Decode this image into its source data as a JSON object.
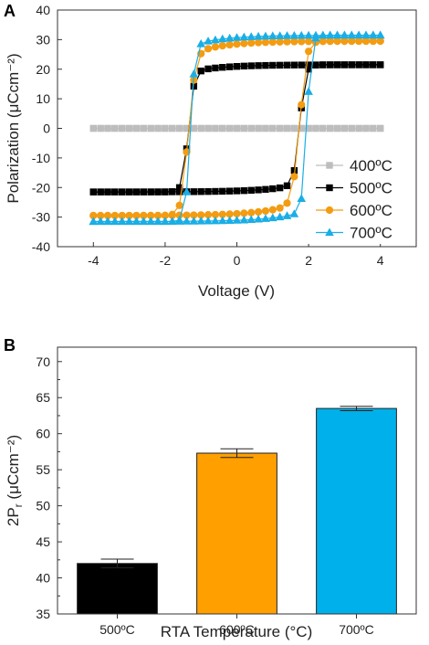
{
  "chart_data": [
    {
      "type": "line",
      "panel_label": "A",
      "xlabel": "Voltage (V)",
      "ylabel": "Polarization (μCcm⁻²)",
      "xlim": [
        -5,
        5
      ],
      "ylim": [
        -40,
        40
      ],
      "xticks": [
        -4,
        -2,
        0,
        2,
        4
      ],
      "yticks": [
        -40,
        -30,
        -20,
        -10,
        0,
        10,
        20,
        30,
        40
      ],
      "grid": false,
      "legend_position": "right",
      "series": [
        {
          "name": "400ºC",
          "color": "#bdbdbd",
          "marker": "square",
          "vc_up": 0,
          "vc_down": 0,
          "ps": 0,
          "tail": 0,
          "branch_width": 0.15
        },
        {
          "name": "500ºC",
          "color": "#000000",
          "marker": "square",
          "vc_up": 1.75,
          "vc_down": -1.35,
          "ps": 21.5,
          "tail": 2.5,
          "branch_width": 0.15
        },
        {
          "name": "600ºC",
          "color": "#f39c12",
          "marker": "circle",
          "vc_up": 1.75,
          "vc_down": -1.35,
          "ps": 29.5,
          "tail": 4.5,
          "branch_width": 0.18
        },
        {
          "name": "700ºC",
          "color": "#1aaee5",
          "marker": "triangle",
          "vc_up": 1.95,
          "vc_down": -1.3,
          "ps": 31.5,
          "tail": 3.5,
          "branch_width": 0.12
        }
      ]
    },
    {
      "type": "bar",
      "panel_label": "B",
      "xlabel": "RTA Temperature (°C)",
      "ylabel_main": "2P",
      "ylabel_sub": "r",
      "ylabel_rest": " (μCcm⁻²)",
      "categories": [
        "500ºC",
        "600ºC",
        "700ºC"
      ],
      "values": [
        42.0,
        57.3,
        63.5
      ],
      "errors": [
        0.6,
        0.6,
        0.3
      ],
      "colors": [
        "#000000",
        "#ffa000",
        "#00b0ea"
      ],
      "ylim": [
        35,
        72
      ],
      "yticks": [
        35,
        40,
        45,
        50,
        55,
        60,
        65,
        70
      ],
      "grid": false
    }
  ]
}
